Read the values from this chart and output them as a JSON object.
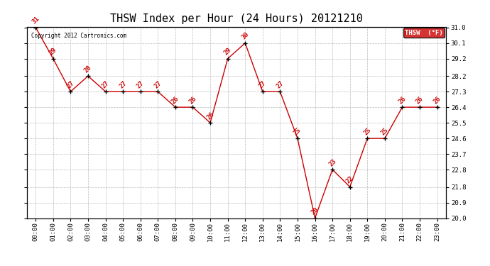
{
  "title": "THSW Index per Hour (24 Hours) 20121210",
  "copyright": "Copyright 2012 Cartronics.com",
  "legend_label": "THSW  (°F)",
  "hours": [
    0,
    1,
    2,
    3,
    4,
    5,
    6,
    7,
    8,
    9,
    10,
    11,
    12,
    13,
    14,
    15,
    16,
    17,
    18,
    19,
    20,
    21,
    22,
    23
  ],
  "values": [
    31.0,
    29.2,
    27.3,
    28.2,
    27.3,
    27.3,
    27.3,
    27.3,
    26.4,
    26.4,
    25.5,
    29.2,
    30.1,
    27.3,
    27.3,
    24.6,
    20.0,
    22.8,
    21.8,
    24.6,
    24.6,
    26.4,
    26.4,
    26.4
  ],
  "ylim_min": 20.0,
  "ylim_max": 31.0,
  "yticks": [
    20.0,
    20.9,
    21.8,
    22.8,
    23.7,
    24.6,
    25.5,
    26.4,
    27.3,
    28.2,
    29.2,
    30.1,
    31.0
  ],
  "line_color": "#cc0000",
  "marker_color": "#000000",
  "label_color": "#cc0000",
  "grid_color": "#bbbbbb",
  "bg_color": "#ffffff",
  "plot_bg_color": "#ffffff",
  "legend_bg": "#cc0000",
  "legend_text_color": "#ffffff",
  "title_fontsize": 11,
  "label_fontsize": 6.5,
  "axis_fontsize": 6.5,
  "copyright_fontsize": 5.5
}
